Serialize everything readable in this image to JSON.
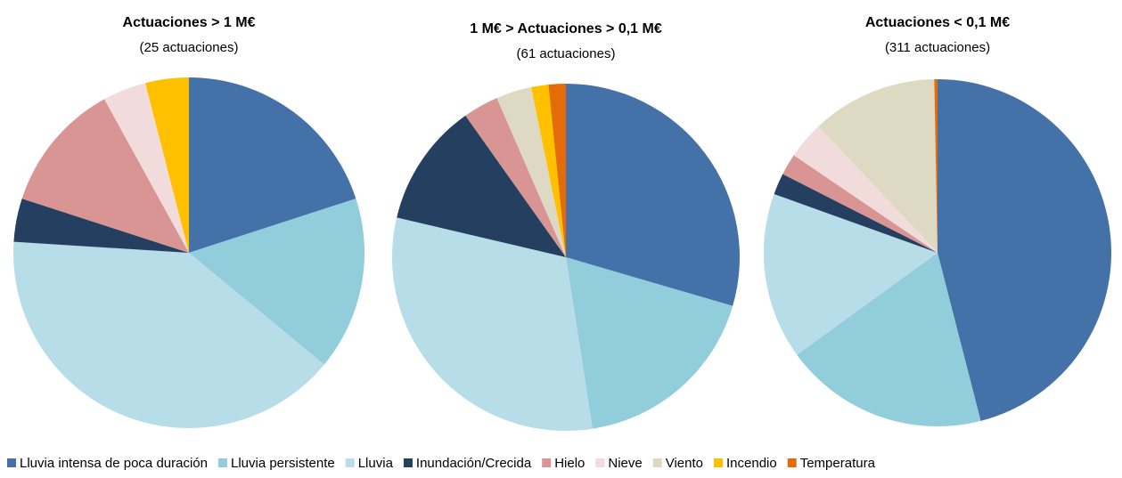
{
  "chart_data": [
    {
      "type": "pie",
      "title": "Actuaciones > 1 M€",
      "subtitle": "(25 actuaciones)",
      "categories": [
        "Lluvia intensa de poca duración",
        "Lluvia persistente",
        "Lluvia",
        "Inundación/Crecida",
        "Hielo",
        "Nieve",
        "Viento",
        "Incendio",
        "Temperatura"
      ],
      "colors": [
        "#4472a8",
        "#92cddc",
        "#b7dde8",
        "#253f60",
        "#d99594",
        "#f2dcdb",
        "#ddd9c3",
        "#ffc000",
        "#e36c09"
      ],
      "values": [
        20,
        16,
        40,
        4,
        12,
        4,
        0,
        4,
        0
      ]
    },
    {
      "type": "pie",
      "title": "1 M€ > Actuaciones > 0,1 M€",
      "subtitle": "(61 actuaciones)",
      "categories": [
        "Lluvia intensa de poca duración",
        "Lluvia persistente",
        "Lluvia",
        "Inundación/Crecida",
        "Hielo",
        "Nieve",
        "Viento",
        "Incendio",
        "Temperatura"
      ],
      "colors": [
        "#4472a8",
        "#92cddc",
        "#b7dde8",
        "#253f60",
        "#d99594",
        "#f2dcdb",
        "#ddd9c3",
        "#ffc000",
        "#e36c09"
      ],
      "values": [
        29.5,
        18,
        31.1,
        11.5,
        3.3,
        0,
        3.3,
        1.6,
        1.6
      ]
    },
    {
      "type": "pie",
      "title": "Actuaciones < 0,1 M€",
      "subtitle": "(311 actuaciones)",
      "categories": [
        "Lluvia intensa de poca duración",
        "Lluvia persistente",
        "Lluvia",
        "Inundación/Crecida",
        "Hielo",
        "Nieve",
        "Viento",
        "Incendio",
        "Temperatura"
      ],
      "colors": [
        "#4472a8",
        "#92cddc",
        "#b7dde8",
        "#253f60",
        "#d99594",
        "#f2dcdb",
        "#ddd9c3",
        "#ffc000",
        "#e36c09"
      ],
      "values": [
        46,
        19,
        15.5,
        2,
        2,
        3.5,
        11.7,
        0,
        0.3
      ]
    }
  ]
}
